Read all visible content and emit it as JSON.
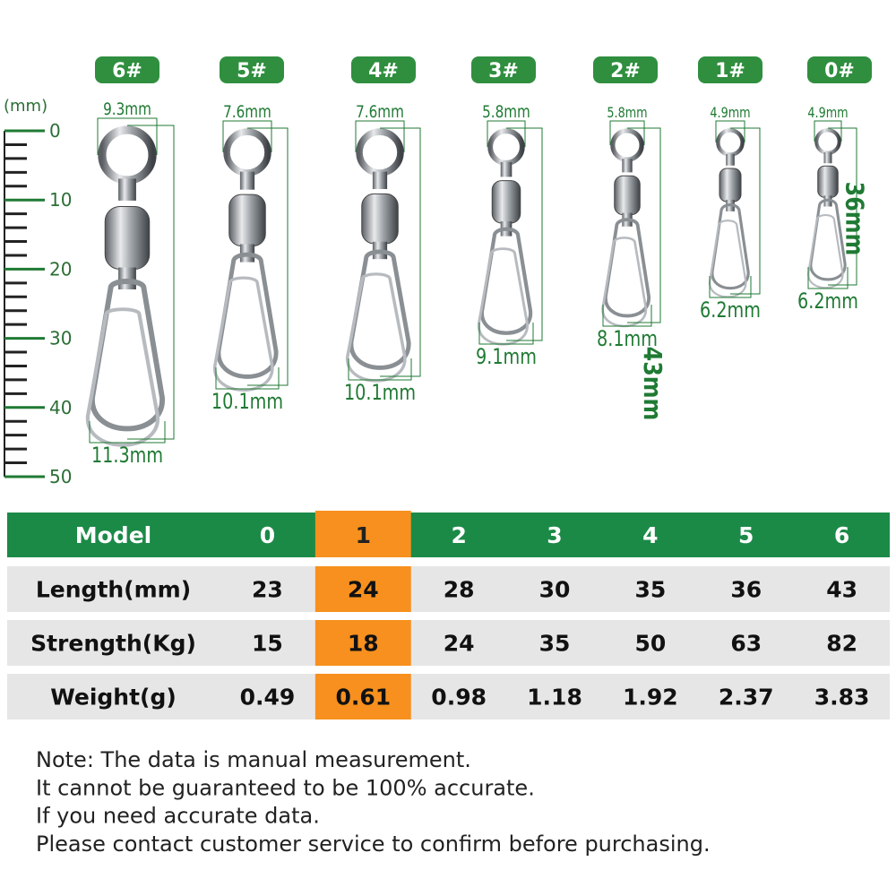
{
  "ruler": {
    "unit": "(mm)",
    "labels": [
      "0",
      "10",
      "20",
      "30",
      "40",
      "50"
    ]
  },
  "swivels": [
    {
      "label": "6#",
      "top_width": "9.3mm",
      "length": "43mm",
      "bottom_width": "11.3mm"
    },
    {
      "label": "5#",
      "top_width": "7.6mm",
      "length": "36mm",
      "bottom_width": "10.1mm"
    },
    {
      "label": "4#",
      "top_width": "7.6mm",
      "length": "35mm",
      "bottom_width": "10.1mm"
    },
    {
      "label": "3#",
      "top_width": "5.8mm",
      "length": "30mm",
      "bottom_width": "9.1mm"
    },
    {
      "label": "2#",
      "top_width": "5.8mm",
      "length": "28mm",
      "bottom_width": "8.1mm"
    },
    {
      "label": "1#",
      "top_width": "4.9mm",
      "length": "24mm",
      "bottom_width": "6.2mm"
    },
    {
      "label": "0#",
      "top_width": "4.9mm",
      "length": "23mm",
      "bottom_width": "6.2mm"
    }
  ],
  "table": {
    "header": [
      "Model",
      "0",
      "1",
      "2",
      "3",
      "4",
      "5",
      "6"
    ],
    "rows": [
      [
        "Length(mm)",
        "23",
        "24",
        "28",
        "30",
        "35",
        "36",
        "43"
      ],
      [
        "Strength(Kg)",
        "15",
        "18",
        "24",
        "35",
        "50",
        "63",
        "82"
      ],
      [
        "Weight(g)",
        "0.49",
        "0.61",
        "0.98",
        "1.18",
        "1.92",
        "2.37",
        "3.83"
      ]
    ],
    "highlight_column": 3,
    "header_color": "#1b8a47",
    "highlight_color": "#f7901e",
    "row_color": "#e6e6e6"
  },
  "notes": [
    "Note: The data is manual measurement.",
    "It cannot be guaranteed to be 100% accurate.",
    "If you need accurate data.",
    "Please contact customer service to confirm before purchasing."
  ]
}
